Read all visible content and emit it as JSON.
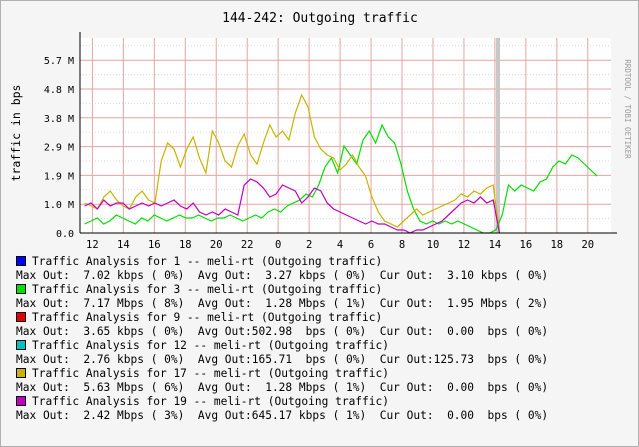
{
  "chart_data": {
    "type": "line",
    "title": "144-242: Outgoing traffic",
    "ylabel": "traffic in bps",
    "watermark": "RRDTOOL / TOBI OETIKER",
    "y_ticks": [
      "0.0",
      "1.0 M",
      "1.9 M",
      "2.9 M",
      "3.8 M",
      "4.8 M",
      "5.7 M"
    ],
    "y_tick_values": [
      0,
      960000,
      1920000,
      2880000,
      3840000,
      4800000,
      5760000
    ],
    "ylim": [
      0,
      6500000
    ],
    "x_ticks": [
      "12",
      "14",
      "16",
      "18",
      "20",
      "22",
      "0",
      "2",
      "4",
      "6",
      "8",
      "10",
      "12",
      "14",
      "16",
      "18",
      "20"
    ],
    "x_tick_hours": [
      12,
      14,
      16,
      18,
      20,
      22,
      24,
      26,
      28,
      30,
      32,
      34,
      36,
      38,
      40,
      42,
      44
    ],
    "xlim_hours": [
      11.2,
      45.5
    ],
    "now_marker_hour": 38.2,
    "grid": true,
    "colors": {
      "plot_bg": "#ffffff",
      "grid_major": "#e6a3a3",
      "grid_minor": "#d9d9d9",
      "axis": "#000000",
      "now_marker": "#c8c8c8"
    },
    "series": [
      {
        "name": "Traffic Analysis for 3 -- meli-rt (Outgoing traffic)",
        "color": "#00e000",
        "start_hour": 11.5,
        "end_hour": 44.6,
        "values": [
          0.3,
          0.4,
          0.5,
          0.3,
          0.4,
          0.6,
          0.5,
          0.4,
          0.3,
          0.5,
          0.4,
          0.6,
          0.5,
          0.4,
          0.5,
          0.6,
          0.5,
          0.5,
          0.6,
          0.5,
          0.4,
          0.5,
          0.5,
          0.6,
          0.5,
          0.4,
          0.5,
          0.6,
          0.5,
          0.7,
          0.8,
          0.7,
          0.9,
          1.0,
          1.1,
          1.3,
          1.2,
          1.6,
          2.2,
          2.5,
          2.0,
          2.9,
          2.6,
          2.3,
          3.1,
          3.4,
          3.0,
          3.6,
          3.2,
          3.0,
          2.3,
          1.4,
          0.8,
          0.4,
          0.3,
          0.4,
          0.3,
          0.4,
          0.3,
          0.4,
          0.3,
          0.2,
          0.1,
          0.0,
          0.0,
          0.1,
          0.6,
          1.6,
          1.4,
          1.6,
          1.5,
          1.4,
          1.7,
          1.8,
          2.2,
          2.4,
          2.3,
          2.6,
          2.5,
          2.3,
          2.1,
          1.9
        ]
      },
      {
        "name": "Traffic Analysis for 17 -- meli-rt (Outgoing traffic)",
        "color": "#c8b400",
        "start_hour": 11.5,
        "end_hour": 38.3,
        "values": [
          1.0,
          0.9,
          0.8,
          1.2,
          1.4,
          1.1,
          0.9,
          0.8,
          1.2,
          1.4,
          1.1,
          1.0,
          2.4,
          3.0,
          2.8,
          2.2,
          2.8,
          3.2,
          2.5,
          2.0,
          3.4,
          3.0,
          2.4,
          2.2,
          2.9,
          3.3,
          2.6,
          2.3,
          3.0,
          3.6,
          3.2,
          3.4,
          3.1,
          4.0,
          4.6,
          4.2,
          3.2,
          2.8,
          2.6,
          2.5,
          2.1,
          2.3,
          2.6,
          2.2,
          1.9,
          1.2,
          0.7,
          0.4,
          0.3,
          0.2,
          0.4,
          0.6,
          0.8,
          0.6,
          0.7,
          0.8,
          0.9,
          1.0,
          1.1,
          1.3,
          1.2,
          1.4,
          1.3,
          1.5,
          1.6,
          0.0
        ]
      },
      {
        "name": "Traffic Analysis for 19 -- meli-rt (Outgoing traffic)",
        "color": "#c000c0",
        "start_hour": 11.5,
        "end_hour": 38.3,
        "values": [
          0.9,
          1.0,
          0.8,
          1.1,
          0.9,
          1.0,
          1.0,
          0.8,
          0.9,
          1.0,
          0.9,
          1.0,
          0.9,
          1.0,
          1.1,
          0.9,
          0.8,
          1.0,
          0.7,
          0.6,
          0.7,
          0.6,
          0.8,
          0.7,
          0.6,
          1.6,
          1.8,
          1.7,
          1.5,
          1.2,
          1.3,
          1.6,
          1.5,
          1.4,
          1.0,
          1.2,
          1.5,
          1.4,
          1.0,
          0.8,
          0.7,
          0.6,
          0.5,
          0.4,
          0.3,
          0.4,
          0.3,
          0.3,
          0.2,
          0.1,
          0.1,
          0.0,
          0.1,
          0.1,
          0.2,
          0.3,
          0.4,
          0.6,
          0.8,
          1.0,
          1.1,
          1.0,
          1.2,
          1.0,
          1.1,
          0.0
        ]
      }
    ]
  },
  "legend": [
    {
      "name": "Traffic Analysis for 1 -- meli-rt (Outgoing traffic)",
      "color": "#0000ff",
      "stats": "Max Out:  7.02 kbps ( 0%)  Avg Out:  3.27 kbps ( 0%)  Cur Out:  3.10 kbps ( 0%)"
    },
    {
      "name": "Traffic Analysis for 3 -- meli-rt (Outgoing traffic)",
      "color": "#00e000",
      "stats": "Max Out:  7.17 Mbps ( 8%)  Avg Out:  1.28 Mbps ( 1%)  Cur Out:  1.95 Mbps ( 2%)"
    },
    {
      "name": "Traffic Analysis for 9 -- meli-rt (Outgoing traffic)",
      "color": "#e00000",
      "stats": "Max Out:  3.65 kbps ( 0%)  Avg Out:502.98  bps ( 0%)  Cur Out:  0.00  bps ( 0%)"
    },
    {
      "name": "Traffic Analysis for 12 -- meli-rt (Outgoing traffic)",
      "color": "#00c0c0",
      "stats": "Max Out:  2.76 kbps ( 0%)  Avg Out:165.71  bps ( 0%)  Cur Out:125.73  bps ( 0%)"
    },
    {
      "name": "Traffic Analysis for 17 -- meli-rt (Outgoing traffic)",
      "color": "#c8b400",
      "stats": "Max Out:  5.63 Mbps ( 6%)  Avg Out:  1.28 Mbps ( 1%)  Cur Out:  0.00  bps ( 0%)"
    },
    {
      "name": "Traffic Analysis for 19 -- meli-rt (Outgoing traffic)",
      "color": "#c000c0",
      "stats": "Max Out:  2.42 Mbps ( 3%)  Avg Out:645.17 kbps ( 1%)  Cur Out:  0.00  bps ( 0%)"
    }
  ]
}
